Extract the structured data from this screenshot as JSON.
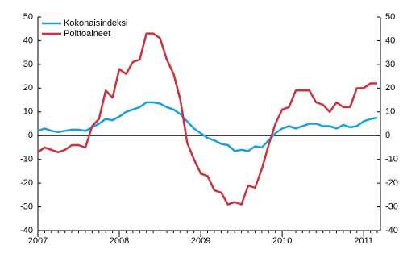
{
  "chart_data": {
    "type": "line",
    "categories": [
      "2007",
      null,
      null,
      null,
      null,
      null,
      null,
      null,
      null,
      null,
      null,
      null,
      "2008",
      null,
      null,
      null,
      null,
      null,
      null,
      null,
      null,
      null,
      null,
      null,
      "2009",
      null,
      null,
      null,
      null,
      null,
      null,
      null,
      null,
      null,
      null,
      null,
      "2010",
      null,
      null,
      null,
      null,
      null,
      null,
      null,
      null,
      null,
      null,
      null,
      "2011",
      null,
      null
    ],
    "series": [
      {
        "name": "Kokonaisindeksi",
        "color": "#1aa0dc",
        "values": [
          2,
          3,
          2,
          1.5,
          2,
          2.5,
          2.5,
          2,
          3.5,
          5,
          7,
          6.5,
          8,
          10,
          11,
          12,
          14,
          14,
          13.5,
          12,
          11,
          9,
          6,
          3,
          1,
          -1,
          -2,
          -3.5,
          -4,
          -6.5,
          -6,
          -6.5,
          -4.5,
          -5,
          -2,
          1,
          3,
          4,
          3,
          4,
          5,
          5,
          4,
          4,
          3,
          4.5,
          3.5,
          4,
          6,
          7,
          7.5
        ]
      },
      {
        "name": "Polttoaineet",
        "color": "#c8323c",
        "values": [
          -7,
          -5,
          -6,
          -7,
          -6,
          -4,
          -4,
          -5,
          4,
          7,
          19,
          16,
          28,
          26,
          31,
          32,
          43,
          43,
          41,
          32,
          26,
          15,
          -3,
          -10,
          -16,
          -17,
          -23,
          -24,
          -29,
          -28,
          -29,
          -21,
          -22,
          -14,
          -4,
          5,
          11,
          12,
          19,
          19,
          19,
          14,
          13,
          10,
          14,
          12,
          12,
          20,
          20,
          22,
          22
        ]
      }
    ],
    "ylim": [
      -40,
      50
    ],
    "yticks": [
      -40,
      -30,
      -20,
      -10,
      0,
      10,
      20,
      30,
      40,
      50
    ]
  }
}
